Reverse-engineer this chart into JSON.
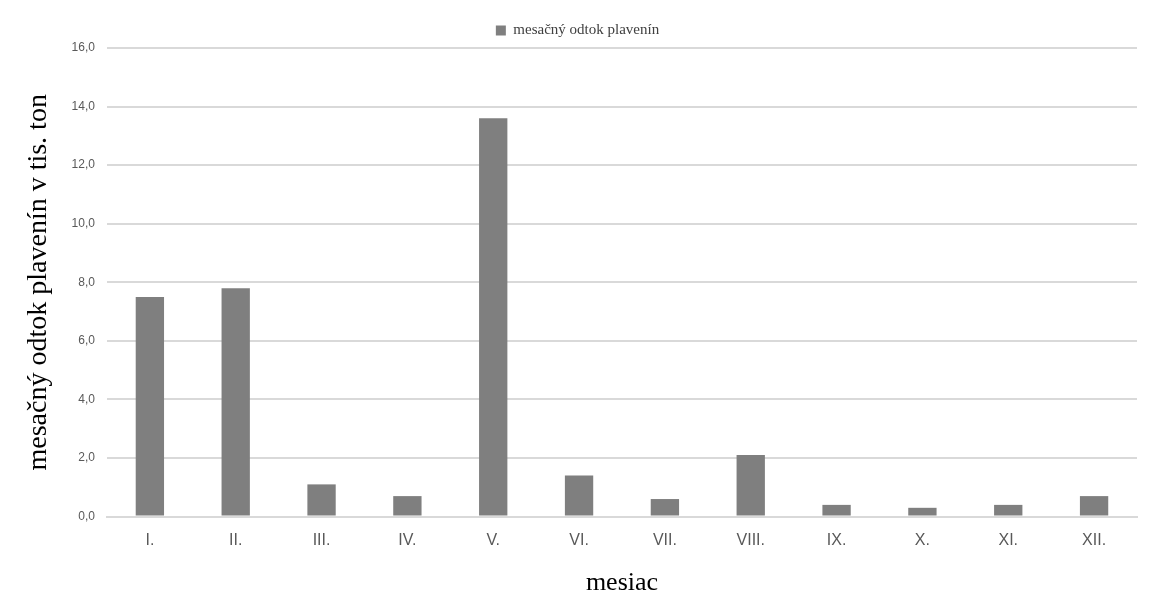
{
  "chart_data": {
    "type": "bar",
    "xlabel": "mesiac",
    "ylabel": "mesačný odtok plavenín v tis. ton",
    "categories": [
      "I.",
      "II.",
      "III.",
      "IV.",
      "V.",
      "VI.",
      "VII.",
      "VIII.",
      "IX.",
      "X.",
      "XI.",
      "XII."
    ],
    "series": [
      {
        "name": "mesačný odtok plavenín",
        "color": "#7f7f7f",
        "values": [
          7.5,
          7.8,
          1.1,
          0.7,
          13.6,
          1.4,
          0.6,
          2.1,
          0.4,
          0.3,
          0.4,
          0.7
        ]
      }
    ],
    "ylim": [
      0,
      16
    ],
    "yticks": [
      {
        "value": 0,
        "label": "0,0"
      },
      {
        "value": 2,
        "label": "2,0"
      },
      {
        "value": 4,
        "label": "4,0"
      },
      {
        "value": 6,
        "label": "6,0"
      },
      {
        "value": 8,
        "label": "8,0"
      },
      {
        "value": 10,
        "label": "10,0"
      },
      {
        "value": 12,
        "label": "12,0"
      },
      {
        "value": 14,
        "label": "14,0"
      },
      {
        "value": 16,
        "label": "16,0"
      }
    ],
    "grid": "y",
    "legend": "top"
  }
}
